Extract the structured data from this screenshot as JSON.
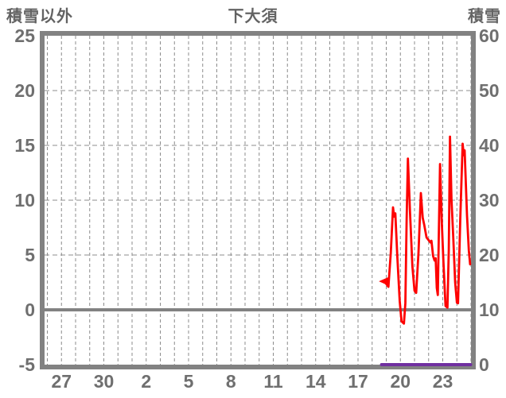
{
  "header": {
    "left_axis_title": "積雪以外",
    "title": "下大須",
    "right_axis_title": "積雪"
  },
  "colors": {
    "line_red": "#fe0000",
    "line_purple": "#7030a0",
    "frame_gray": "#828282",
    "grid_gray": "#8c8c8c",
    "text_gray": "#6f6f6f"
  },
  "chart_data": {
    "type": "line",
    "title": "下大須",
    "left_axis": {
      "label": "積雪以外",
      "ticks": [
        "25",
        "20",
        "15",
        "10",
        "5",
        "0",
        "-5"
      ],
      "range": [
        -5,
        25
      ]
    },
    "right_axis": {
      "label": "積雪",
      "ticks": [
        "60",
        "50",
        "40",
        "30",
        "20",
        "10",
        "0"
      ],
      "range": [
        0,
        60
      ]
    },
    "x_axis": {
      "labels": [
        "27",
        "30",
        "2",
        "5",
        "8",
        "11",
        "14",
        "17",
        "20",
        "23"
      ],
      "unit": "day",
      "gridline_count": 31,
      "first_label_gridline": 1,
      "label_step_gridlines": 3
    },
    "grid": "dashed; one vertical line per day; horizontal lines every 5 units of left axis",
    "zero_line_left_axis": 0,
    "horizontal_gridlines_left_axis": [
      20,
      15,
      10,
      5
    ],
    "legend": "none shown",
    "series": [
      {
        "name": "積雪以外",
        "axis": "left",
        "color": "#fe0000",
        "marker": "left-arrow at series start",
        "x_unit": "gridline index (day)",
        "points": [
          [
            23.7,
            2.6
          ],
          [
            23.95,
            2.45
          ],
          [
            24.15,
            2.1
          ],
          [
            24.32,
            5.2
          ],
          [
            24.48,
            9.35
          ],
          [
            24.56,
            8.5
          ],
          [
            24.64,
            8.8
          ],
          [
            24.78,
            5.0
          ],
          [
            24.95,
            0.8
          ],
          [
            25.08,
            -1.05
          ],
          [
            25.25,
            -1.25
          ],
          [
            25.35,
            0.6
          ],
          [
            25.44,
            8.2
          ],
          [
            25.53,
            13.8
          ],
          [
            25.68,
            9.0
          ],
          [
            25.85,
            4.0
          ],
          [
            26.0,
            1.75
          ],
          [
            26.12,
            1.55
          ],
          [
            26.28,
            5.2
          ],
          [
            26.45,
            10.65
          ],
          [
            26.58,
            8.4
          ],
          [
            26.68,
            7.8
          ],
          [
            26.85,
            6.6
          ],
          [
            27.0,
            6.35
          ],
          [
            27.12,
            6.15
          ],
          [
            27.2,
            6.3
          ],
          [
            27.32,
            4.9
          ],
          [
            27.42,
            4.5
          ],
          [
            27.5,
            4.7
          ],
          [
            27.58,
            2.0
          ],
          [
            27.65,
            1.35
          ],
          [
            27.73,
            7.5
          ],
          [
            27.81,
            13.3
          ],
          [
            27.93,
            8.0
          ],
          [
            28.05,
            4.3
          ],
          [
            28.2,
            0.35
          ],
          [
            28.33,
            0.2
          ],
          [
            28.43,
            5.5
          ],
          [
            28.51,
            15.8
          ],
          [
            28.62,
            10.0
          ],
          [
            28.74,
            6.8
          ],
          [
            28.88,
            2.5
          ],
          [
            29.0,
            0.65
          ],
          [
            29.08,
            0.6
          ],
          [
            29.24,
            8.2
          ],
          [
            29.41,
            15.15
          ],
          [
            29.49,
            14.1
          ],
          [
            29.55,
            14.55
          ],
          [
            29.72,
            8.6
          ],
          [
            29.85,
            5.4
          ],
          [
            29.94,
            4.15
          ]
        ]
      },
      {
        "name": "積雪",
        "axis": "right",
        "color": "#7030a0",
        "x_unit": "gridline index (day)",
        "points": [
          [
            23.67,
            0
          ],
          [
            29.97,
            0
          ]
        ]
      }
    ]
  }
}
